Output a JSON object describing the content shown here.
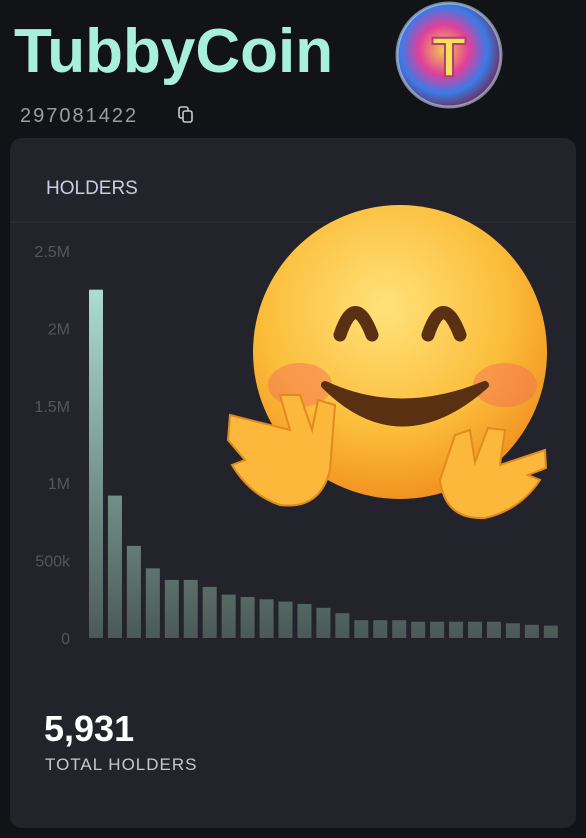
{
  "header": {
    "title": "TubbyCoin",
    "id": "297081422"
  },
  "card": {
    "title": "HOLDERS",
    "total": "5,931",
    "total_label": "TOTAL HOLDERS"
  },
  "chart_data": {
    "type": "bar",
    "categories": [
      null,
      null,
      null,
      null,
      null,
      null,
      null,
      null,
      null,
      null,
      null,
      null,
      null,
      null,
      null,
      null,
      null,
      null,
      null,
      null,
      null,
      null,
      null,
      null,
      null
    ],
    "values": [
      2250000,
      920000,
      595000,
      450000,
      375000,
      375000,
      330000,
      280000,
      265000,
      250000,
      235000,
      220000,
      195000,
      160000,
      115000,
      115000,
      115000,
      105000,
      105000,
      105000,
      105000,
      105000,
      95000,
      85000,
      80000
    ],
    "color_top": "#b6ecdb",
    "color_bottom": "#4b5957",
    "ylim": [
      0,
      2500000
    ],
    "yticks": [
      0,
      {
        "value": 500000,
        "label": "500k"
      },
      {
        "value": 1000000,
        "label": "1M"
      },
      {
        "value": 1500000,
        "label": "1.5M"
      },
      {
        "value": 2000000,
        "label": "2M"
      },
      {
        "value": 2500000,
        "label": "2.5M"
      }
    ],
    "grid": false
  }
}
